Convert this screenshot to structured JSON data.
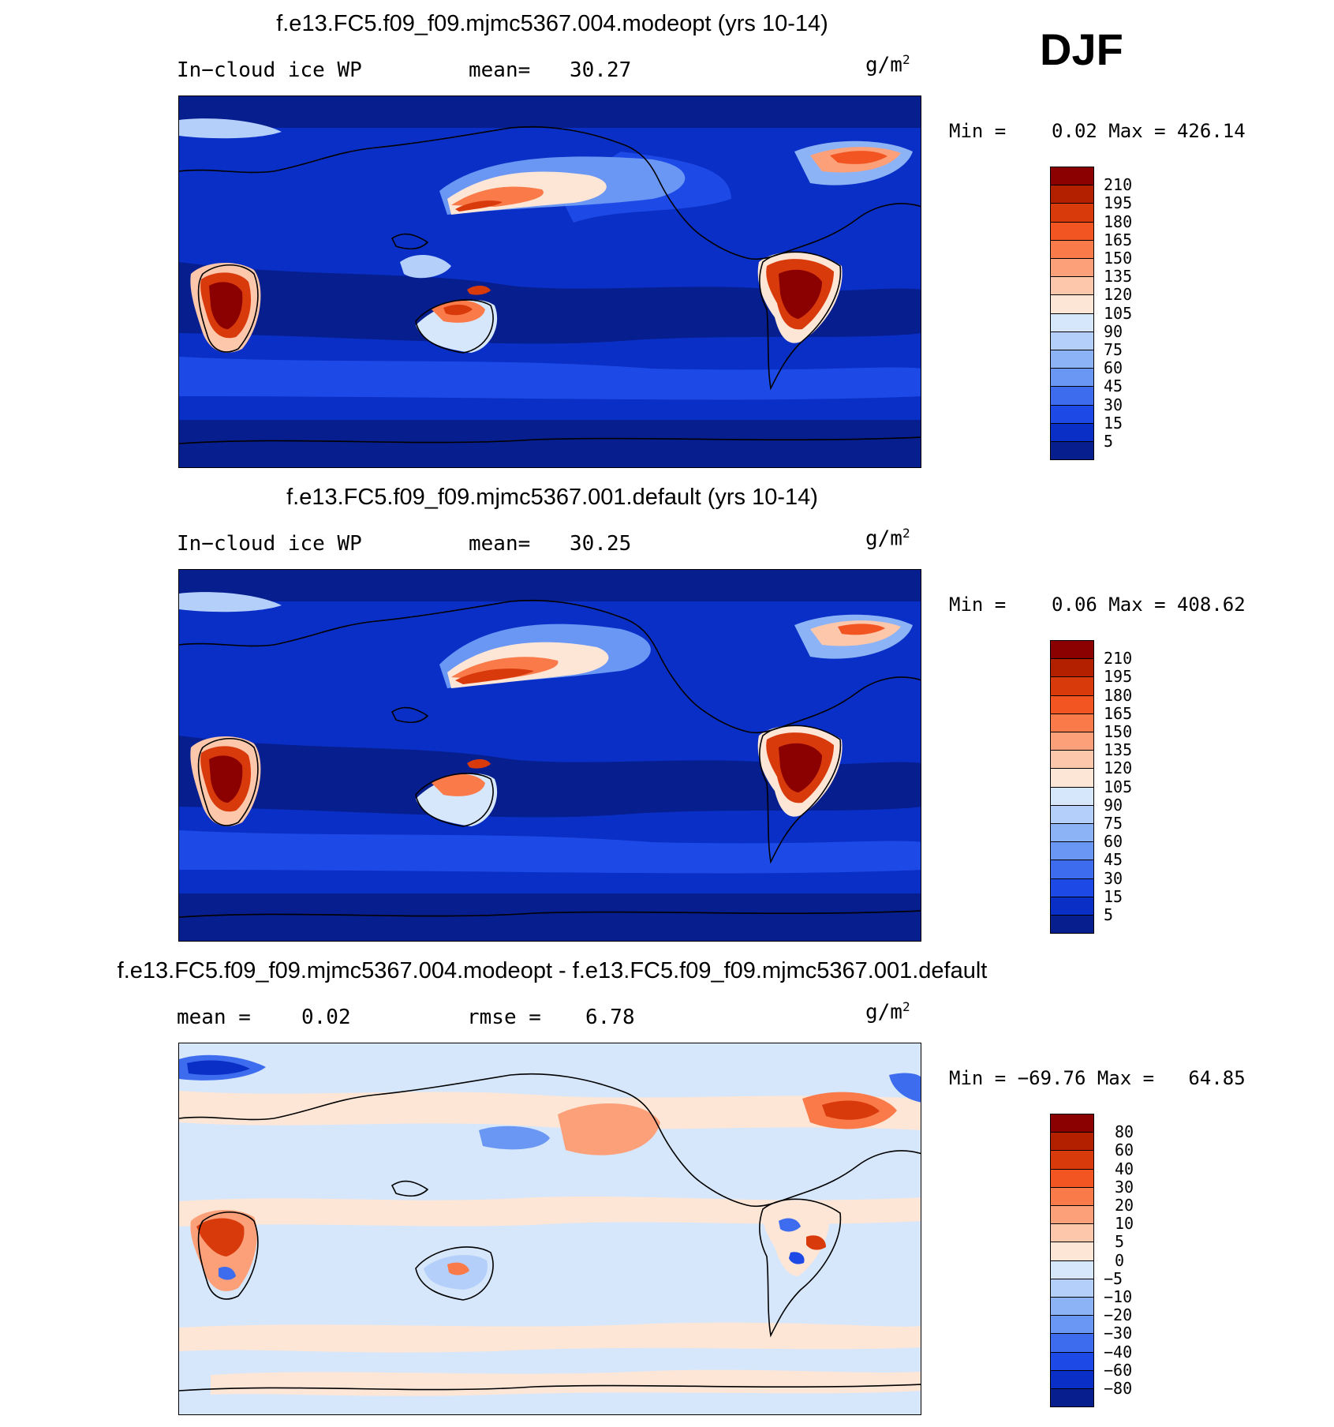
{
  "season": "DJF",
  "panels": [
    {
      "title": "f.e13.FC5.f09_f09.mjmc5367.004.modeopt (yrs 10-14)",
      "left_label": "In−cloud ice WP",
      "stat_label": "mean=",
      "stat_value": "30.27",
      "units_base": "g/m",
      "units_sup": "2",
      "minmax": "Min =    0.02 Max = 426.14",
      "levels": [
        "210",
        "195",
        "180",
        "165",
        "150",
        "135",
        "120",
        "105",
        "90",
        "75",
        "60",
        "45",
        "30",
        "15",
        "5"
      ],
      "colors": [
        "#8b0000",
        "#b32000",
        "#d83a0c",
        "#f25522",
        "#fa7a4a",
        "#fca07a",
        "#fdc7ab",
        "#fde6d6",
        "#d6e7fb",
        "#b4d0fa",
        "#8db3f7",
        "#6a96f4",
        "#3e6cef",
        "#1d4ae6",
        "#0a2fc6",
        "#061e8e"
      ]
    },
    {
      "title": "f.e13.FC5.f09_f09.mjmc5367.001.default (yrs 10-14)",
      "left_label": "In−cloud ice WP",
      "stat_label": "mean=",
      "stat_value": "30.25",
      "units_base": "g/m",
      "units_sup": "2",
      "minmax": "Min =    0.06 Max = 408.62",
      "levels": [
        "210",
        "195",
        "180",
        "165",
        "150",
        "135",
        "120",
        "105",
        "90",
        "75",
        "60",
        "45",
        "30",
        "15",
        "5"
      ],
      "colors": [
        "#8b0000",
        "#b32000",
        "#d83a0c",
        "#f25522",
        "#fa7a4a",
        "#fca07a",
        "#fdc7ab",
        "#fde6d6",
        "#d6e7fb",
        "#b4d0fa",
        "#8db3f7",
        "#6a96f4",
        "#3e6cef",
        "#1d4ae6",
        "#0a2fc6",
        "#061e8e"
      ]
    },
    {
      "title": "f.e13.FC5.f09_f09.mjmc5367.004.modeopt - f.e13.FC5.f09_f09.mjmc5367.001.default",
      "left_label": "mean =",
      "stat_value_left": "0.02",
      "stat_label": "rmse =",
      "stat_value": "6.78",
      "units_base": "g/m",
      "units_sup": "2",
      "minmax": "Min = −69.76 Max =   64.85",
      "levels": [
        "80",
        "60",
        "40",
        "30",
        "20",
        "10",
        "5",
        "0",
        "−5",
        "−10",
        "−20",
        "−30",
        "−40",
        "−60",
        "−80"
      ],
      "colors": [
        "#8b0000",
        "#b32000",
        "#d83a0c",
        "#f25522",
        "#fa7a4a",
        "#fca07a",
        "#fdc7ab",
        "#fde6d6",
        "#d6e7fb",
        "#b4d0fa",
        "#8db3f7",
        "#6a96f4",
        "#3e6cef",
        "#1d4ae6",
        "#0a2fc6",
        "#061e8e"
      ]
    }
  ]
}
